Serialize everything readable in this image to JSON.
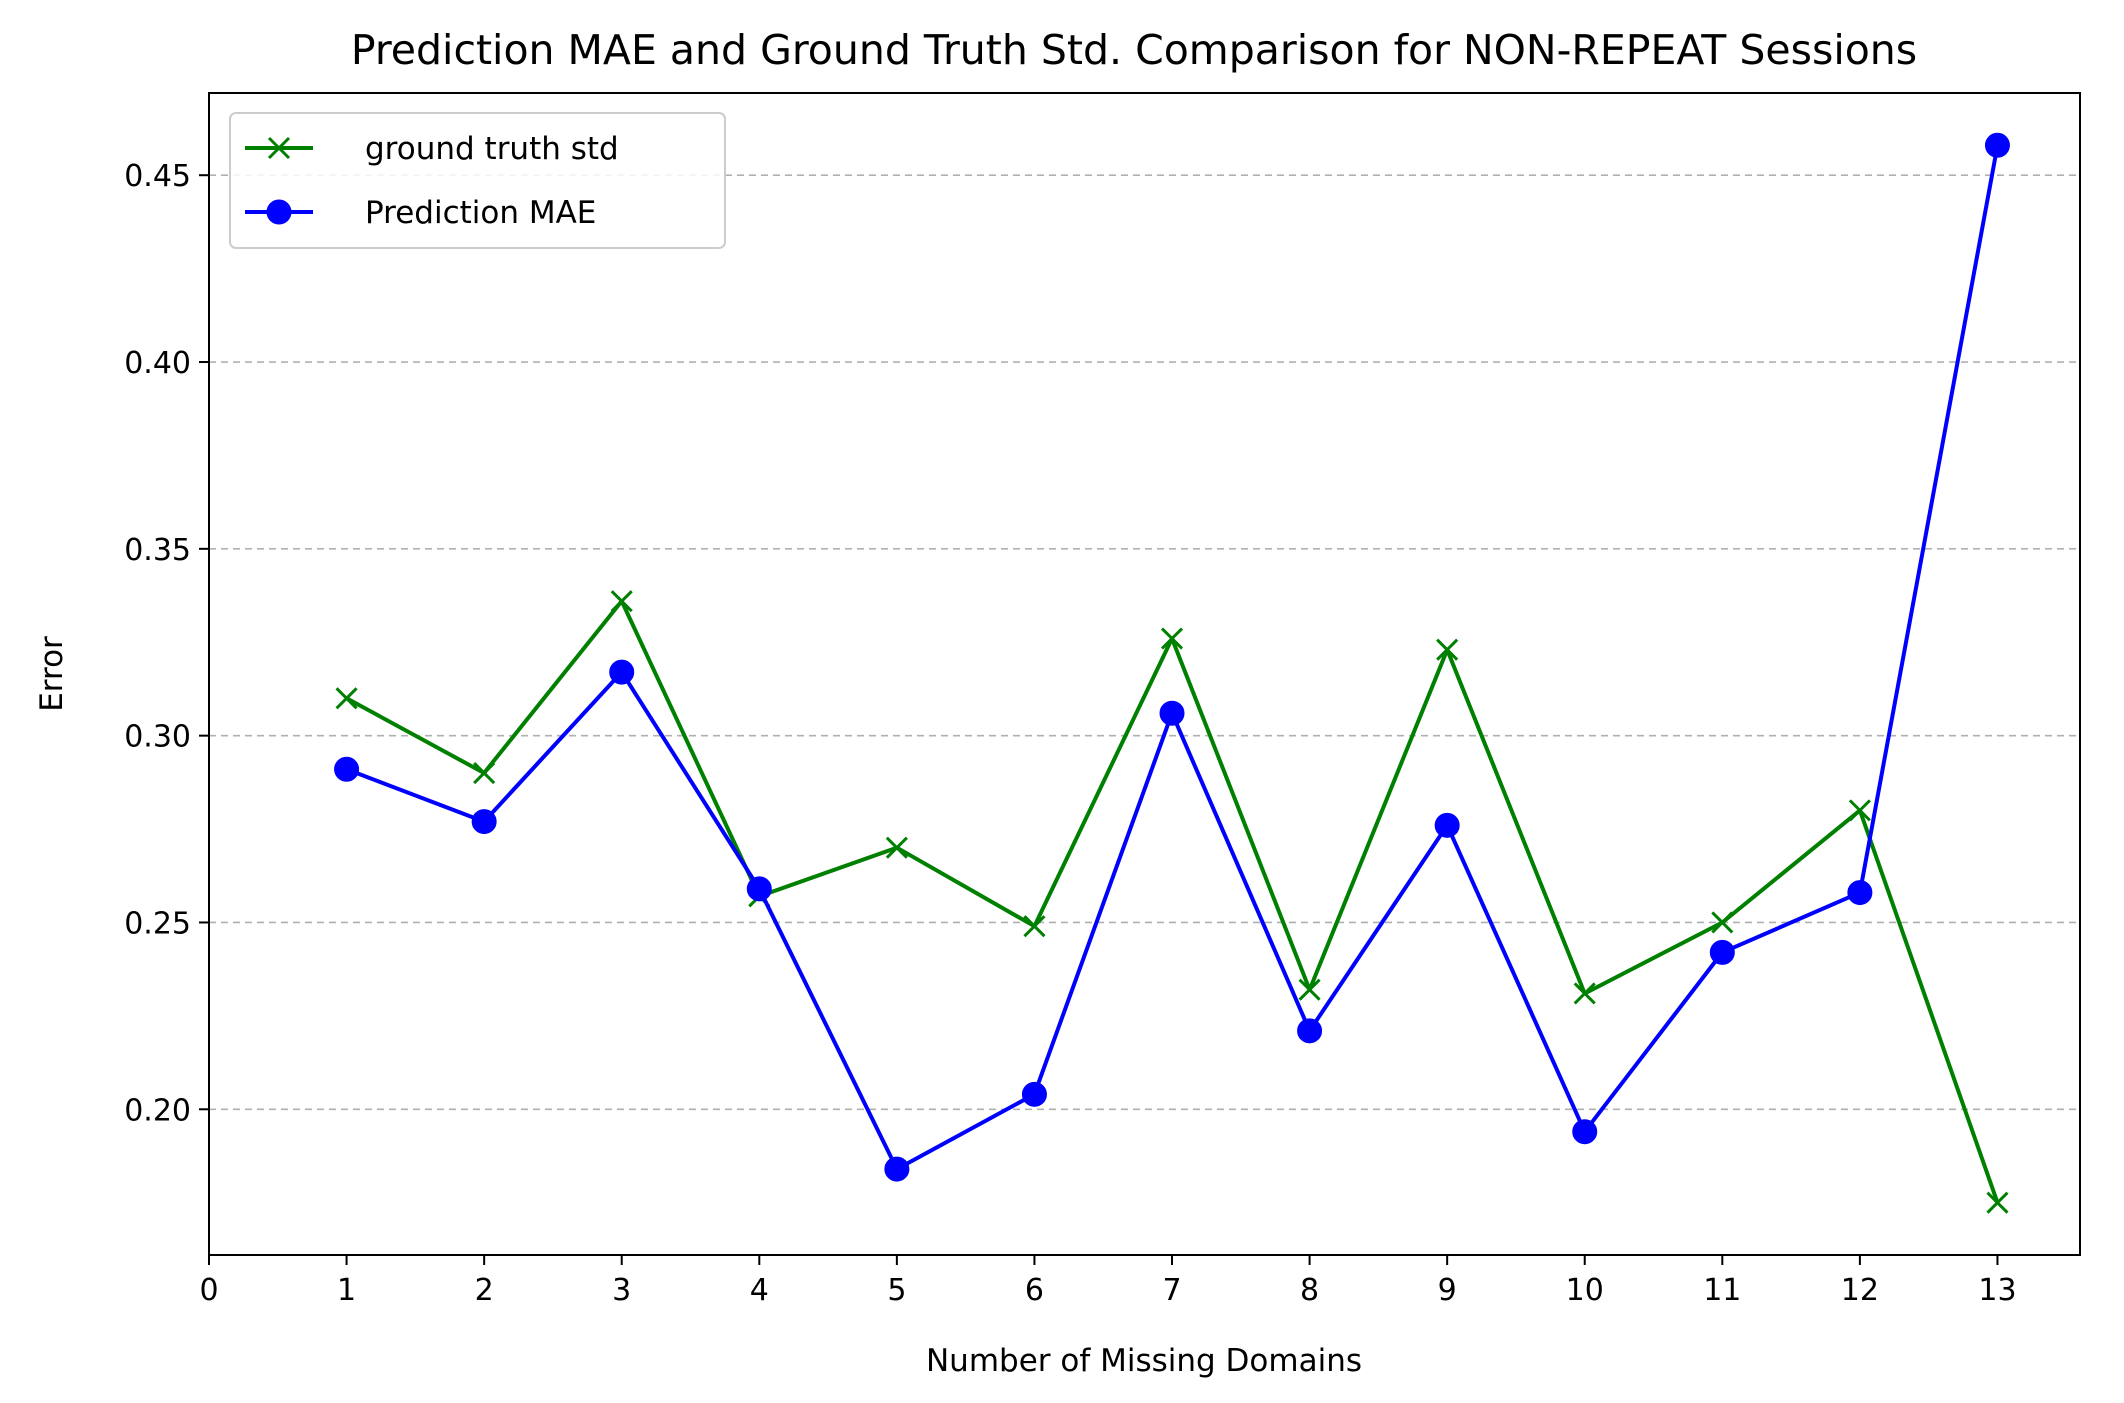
{
  "chart_data": {
    "type": "line",
    "title": "Prediction MAE and Ground Truth Std. Comparison for NON-REPEAT Sessions",
    "xlabel": "Number of Missing Domains",
    "ylabel": "Error",
    "x": [
      1,
      2,
      3,
      4,
      5,
      6,
      7,
      8,
      9,
      10,
      11,
      12,
      13
    ],
    "xticks": [
      0,
      1,
      2,
      3,
      4,
      5,
      6,
      7,
      8,
      9,
      10,
      11,
      12,
      13
    ],
    "yticks": [
      0.2,
      0.25,
      0.3,
      0.35,
      0.4,
      0.45
    ],
    "ytick_labels": [
      "0.20",
      "0.25",
      "0.30",
      "0.35",
      "0.40",
      "0.45"
    ],
    "xlim": [
      0,
      13.6
    ],
    "ylim": [
      0.161,
      0.472
    ],
    "grid": "horizontal dashed",
    "legend_position": "top-left",
    "series": [
      {
        "name": "ground truth std",
        "color": "#008000",
        "marker": "x",
        "values": [
          0.31,
          0.29,
          0.336,
          0.257,
          0.27,
          0.249,
          0.326,
          0.232,
          0.323,
          0.231,
          0.25,
          0.28,
          0.175
        ]
      },
      {
        "name": "Prediction MAE",
        "color": "#0000ff",
        "marker": "o",
        "values": [
          0.291,
          0.277,
          0.317,
          0.259,
          0.184,
          0.204,
          0.306,
          0.221,
          0.276,
          0.194,
          0.242,
          0.258,
          0.458
        ]
      }
    ]
  }
}
